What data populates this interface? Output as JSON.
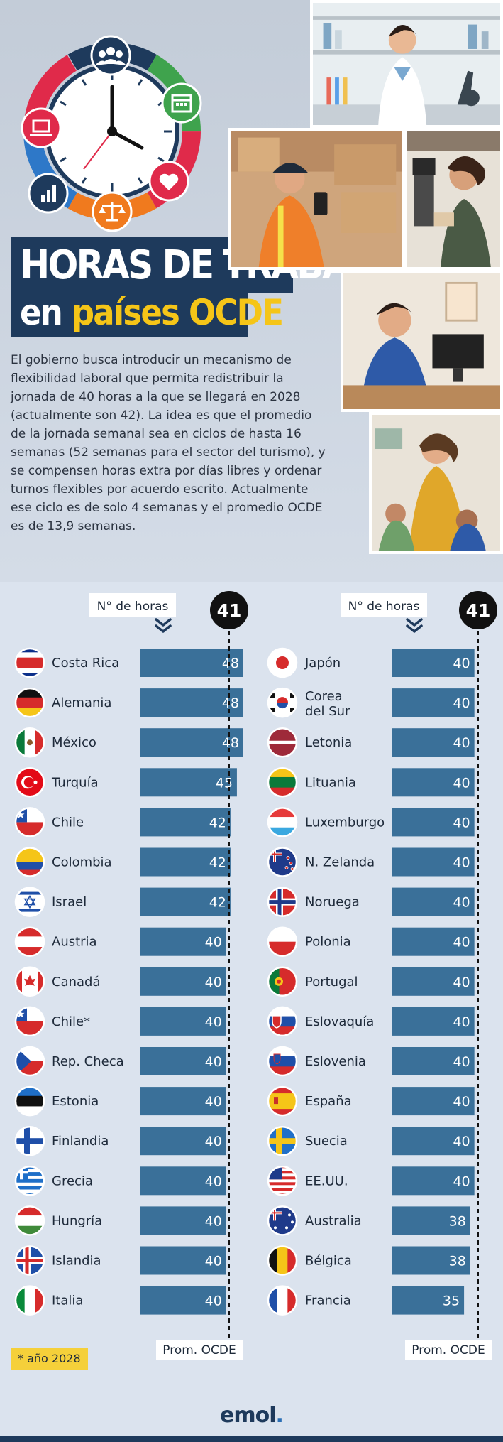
{
  "title": {
    "line1": "HORAS DE TRABAJO",
    "line2_prefix": "en ",
    "line2_highlight": "países OCDE"
  },
  "intro": "El gobierno busca introducir un mecanismo de flexibilidad laboral que permita redistribuir la jornada de 40 horas a la que se llegará en 2028 (actualmente son 42). La idea es que el promedio de la jornada semanal sea en ciclos de hasta 16 semanas (52 semanas para el sector del turismo), y se compensen horas extra por días libres y ordenar turnos flexibles por acuerdo escrito. Actualmente ese ciclo es de solo 4 semanas y el promedio OCDE es de 13,9 semanas.",
  "footnote": "* año 2028",
  "logo": {
    "text": "emol",
    "dot": "."
  },
  "colors": {
    "bar": "#3a7099",
    "title_bg": "#1e3a5c",
    "highlight": "#f5c518",
    "average_badge": "#111111"
  },
  "icons": [
    "people-icon",
    "calendar-icon",
    "heart-icon",
    "scales-icon",
    "bar-chart-icon",
    "laptop-icon",
    "clock-icon",
    "chevron-down-icon"
  ],
  "chart_data": [
    {
      "type": "bar",
      "orientation": "horizontal",
      "column_header": "N° de horas",
      "average_value": 41,
      "average_label": "Prom. OCDE",
      "xlim": [
        0,
        48
      ],
      "categories": [
        "Costa Rica",
        "Alemania",
        "México",
        "Turquía",
        "Chile",
        "Colombia",
        "Israel",
        "Austria",
        "Canadá",
        "Chile*",
        "Rep. Checa",
        "Estonia",
        "Finlandia",
        "Grecia",
        "Hungría",
        "Islandia",
        "Italia"
      ],
      "values": [
        48,
        48,
        48,
        45,
        42,
        42,
        42,
        40,
        40,
        40,
        40,
        40,
        40,
        40,
        40,
        40,
        40
      ]
    },
    {
      "type": "bar",
      "orientation": "horizontal",
      "column_header": "N° de horas",
      "average_value": 41,
      "average_label": "Prom. OCDE",
      "xlim": [
        0,
        48
      ],
      "categories": [
        "Japón",
        "Corea del Sur",
        "Letonia",
        "Lituania",
        "Luxemburgo",
        "N. Zelanda",
        "Noruega",
        "Polonia",
        "Portugal",
        "Eslovaquía",
        "Eslovenia",
        "España",
        "Suecia",
        "EE.UU.",
        "Australia",
        "Bélgica",
        "Francia"
      ],
      "values": [
        40,
        40,
        40,
        40,
        40,
        40,
        40,
        40,
        40,
        40,
        40,
        40,
        40,
        40,
        38,
        38,
        35
      ]
    }
  ]
}
